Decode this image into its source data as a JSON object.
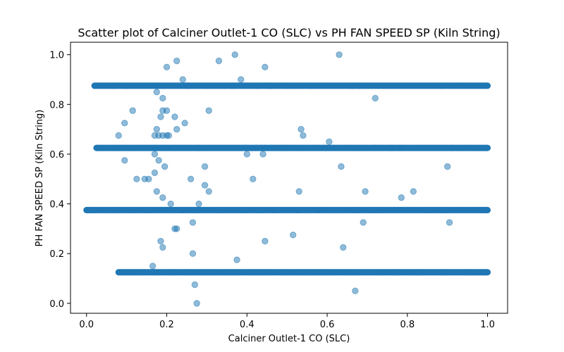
{
  "chart_data": {
    "type": "scatter",
    "title": "Scatter plot of Calciner Outlet-1 CO (SLC) vs PH FAN SPEED SP  (Kiln String)",
    "xlabel": "Calciner Outlet-1 CO (SLC)",
    "ylabel": "PH FAN SPEED SP  (Kiln String)",
    "xlim": [
      -0.04,
      1.05
    ],
    "ylim": [
      -0.04,
      1.05
    ],
    "xticks": [
      0.0,
      0.2,
      0.4,
      0.6,
      0.8,
      1.0
    ],
    "yticks": [
      0.0,
      0.2,
      0.4,
      0.6,
      0.8,
      1.0
    ],
    "xtick_labels": [
      "0.0",
      "0.2",
      "0.4",
      "0.6",
      "0.8",
      "1.0"
    ],
    "ytick_labels": [
      "0.0",
      "0.2",
      "0.4",
      "0.6",
      "0.8",
      "1.0"
    ],
    "grid": false,
    "marker_color": "#1f77b4",
    "marker_alpha": 0.5,
    "bands": [
      {
        "y": 0.875,
        "x_start": 0.02,
        "x_end": 1.0
      },
      {
        "y": 0.625,
        "x_start": 0.025,
        "x_end": 1.0
      },
      {
        "y": 0.375,
        "x_start": 0.0,
        "x_end": 1.0
      },
      {
        "y": 0.125,
        "x_start": 0.08,
        "x_end": 1.0
      }
    ],
    "points": [
      {
        "x": 0.37,
        "y": 1.0
      },
      {
        "x": 0.63,
        "y": 1.0
      },
      {
        "x": 0.225,
        "y": 0.975
      },
      {
        "x": 0.33,
        "y": 0.975
      },
      {
        "x": 0.2,
        "y": 0.95
      },
      {
        "x": 0.445,
        "y": 0.95
      },
      {
        "x": 0.24,
        "y": 0.9
      },
      {
        "x": 0.385,
        "y": 0.9
      },
      {
        "x": 0.175,
        "y": 0.85
      },
      {
        "x": 0.72,
        "y": 0.825
      },
      {
        "x": 0.19,
        "y": 0.825
      },
      {
        "x": 0.115,
        "y": 0.775
      },
      {
        "x": 0.19,
        "y": 0.775
      },
      {
        "x": 0.2,
        "y": 0.775
      },
      {
        "x": 0.305,
        "y": 0.775
      },
      {
        "x": 0.185,
        "y": 0.75
      },
      {
        "x": 0.22,
        "y": 0.75
      },
      {
        "x": 0.095,
        "y": 0.725
      },
      {
        "x": 0.245,
        "y": 0.725
      },
      {
        "x": 0.175,
        "y": 0.7
      },
      {
        "x": 0.225,
        "y": 0.7
      },
      {
        "x": 0.535,
        "y": 0.7
      },
      {
        "x": 0.08,
        "y": 0.675
      },
      {
        "x": 0.17,
        "y": 0.675
      },
      {
        "x": 0.18,
        "y": 0.675
      },
      {
        "x": 0.19,
        "y": 0.675
      },
      {
        "x": 0.2,
        "y": 0.675
      },
      {
        "x": 0.205,
        "y": 0.675
      },
      {
        "x": 0.54,
        "y": 0.675
      },
      {
        "x": 0.605,
        "y": 0.65
      },
      {
        "x": 0.17,
        "y": 0.6
      },
      {
        "x": 0.4,
        "y": 0.6
      },
      {
        "x": 0.44,
        "y": 0.6
      },
      {
        "x": 0.095,
        "y": 0.575
      },
      {
        "x": 0.18,
        "y": 0.575
      },
      {
        "x": 0.195,
        "y": 0.55
      },
      {
        "x": 0.295,
        "y": 0.55
      },
      {
        "x": 0.635,
        "y": 0.55
      },
      {
        "x": 0.9,
        "y": 0.55
      },
      {
        "x": 0.17,
        "y": 0.525
      },
      {
        "x": 0.125,
        "y": 0.5
      },
      {
        "x": 0.145,
        "y": 0.5
      },
      {
        "x": 0.155,
        "y": 0.5
      },
      {
        "x": 0.26,
        "y": 0.5
      },
      {
        "x": 0.415,
        "y": 0.5
      },
      {
        "x": 0.295,
        "y": 0.475
      },
      {
        "x": 0.175,
        "y": 0.45
      },
      {
        "x": 0.305,
        "y": 0.45
      },
      {
        "x": 0.53,
        "y": 0.45
      },
      {
        "x": 0.695,
        "y": 0.45
      },
      {
        "x": 0.815,
        "y": 0.45
      },
      {
        "x": 0.19,
        "y": 0.425
      },
      {
        "x": 0.785,
        "y": 0.425
      },
      {
        "x": 0.21,
        "y": 0.4
      },
      {
        "x": 0.28,
        "y": 0.4
      },
      {
        "x": 0.265,
        "y": 0.325
      },
      {
        "x": 0.69,
        "y": 0.325
      },
      {
        "x": 0.905,
        "y": 0.325
      },
      {
        "x": 0.22,
        "y": 0.3
      },
      {
        "x": 0.225,
        "y": 0.3
      },
      {
        "x": 0.515,
        "y": 0.275
      },
      {
        "x": 0.185,
        "y": 0.25
      },
      {
        "x": 0.445,
        "y": 0.25
      },
      {
        "x": 0.19,
        "y": 0.225
      },
      {
        "x": 0.64,
        "y": 0.225
      },
      {
        "x": 0.265,
        "y": 0.2
      },
      {
        "x": 0.375,
        "y": 0.175
      },
      {
        "x": 0.165,
        "y": 0.15
      },
      {
        "x": 0.27,
        "y": 0.075
      },
      {
        "x": 0.67,
        "y": 0.05
      },
      {
        "x": 0.275,
        "y": 0.0
      }
    ]
  }
}
